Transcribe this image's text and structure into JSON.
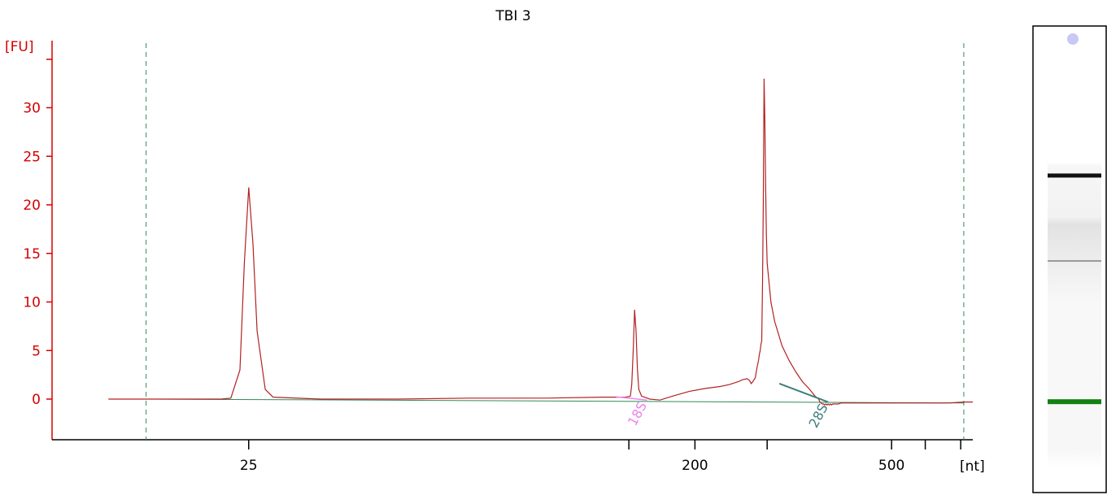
{
  "chart_data": {
    "type": "line",
    "title": "TBI 3",
    "ylabel": "[FU]",
    "xlabel": "[nt]",
    "ylim": [
      -4,
      37
    ],
    "y_ticks": [
      0,
      5,
      10,
      15,
      20,
      25,
      30
    ],
    "x_ticks": [
      {
        "label": "25",
        "value": 25
      },
      {
        "label": "",
        "value": 147
      },
      {
        "label": "200",
        "value": 200
      },
      {
        "label": "",
        "value": 280
      },
      {
        "label": "500",
        "value": 500
      },
      {
        "label": "",
        "value": 585
      },
      {
        "label": "",
        "value": 690
      }
    ],
    "series": [
      {
        "color": "#b22222",
        "x": [
          13,
          16,
          19,
          21,
          22,
          23,
          24,
          24.5,
          25,
          25.5,
          26,
          27,
          28,
          35,
          50,
          70,
          100,
          130,
          145,
          148,
          149,
          150,
          151,
          152,
          153,
          154,
          156,
          158,
          160,
          162,
          170,
          180,
          195,
          210,
          225,
          235,
          245,
          250,
          255,
          258,
          260,
          262,
          265,
          266,
          267,
          268,
          269,
          270,
          271,
          272,
          273,
          274,
          275,
          276,
          277,
          278,
          279,
          280,
          285,
          290,
          300,
          310,
          320,
          330,
          340,
          345,
          350,
          356,
          358,
          360,
          362,
          364,
          366,
          368,
          370,
          372,
          374,
          376,
          378,
          380,
          385,
          390,
          395,
          400,
          410,
          420,
          450,
          500,
          550,
          600,
          650,
          700,
          730
        ],
        "y": [
          0,
          0,
          0,
          0,
          0,
          0.1,
          3,
          14,
          21.8,
          16,
          7,
          1,
          0.2,
          0,
          0,
          0.1,
          0.1,
          0.2,
          0.2,
          0.3,
          1.5,
          5,
          9.2,
          7,
          3,
          1,
          0.3,
          0.2,
          0.1,
          0,
          -0.1,
          0.3,
          0.8,
          1.1,
          1.3,
          1.5,
          1.8,
          2,
          2.1,
          1.9,
          1.6,
          1.8,
          2.2,
          2.7,
          3.2,
          3.6,
          4,
          4.6,
          5,
          5.6,
          6,
          12,
          20,
          33,
          29,
          22,
          17,
          14,
          10,
          8,
          5.5,
          4,
          2.8,
          1.8,
          1.1,
          0.7,
          0.3,
          0,
          -0.3,
          -0.4,
          -0.5,
          -0.5,
          -0.6,
          -0.5,
          -0.6,
          -0.5,
          -0.6,
          -0.5,
          -0.6,
          -0.5,
          -0.5,
          -0.5,
          -0.4,
          -0.4,
          -0.4,
          -0.4,
          -0.4,
          -0.4,
          -0.4,
          -0.4,
          -0.4,
          -0.3,
          -0.3
        ]
      }
    ],
    "baseline": {
      "color": "#2e8b57",
      "x": [
        16,
        700
      ],
      "y": [
        0,
        -0.4
      ]
    },
    "markers": [
      {
        "label": "18S",
        "color": "#ee82ee",
        "x": 160
      },
      {
        "label": "28S",
        "color": "#3c7f7c",
        "x": 372
      }
    ],
    "gel_lane": {
      "bands": [
        {
          "position": 0.29,
          "color": "#111111",
          "strength": "strong"
        },
        {
          "position": 0.46,
          "color": "#999999",
          "strength": "faint"
        },
        {
          "position": 0.8,
          "color": "#128012",
          "strength": "marker"
        }
      ]
    },
    "grid": false
  }
}
